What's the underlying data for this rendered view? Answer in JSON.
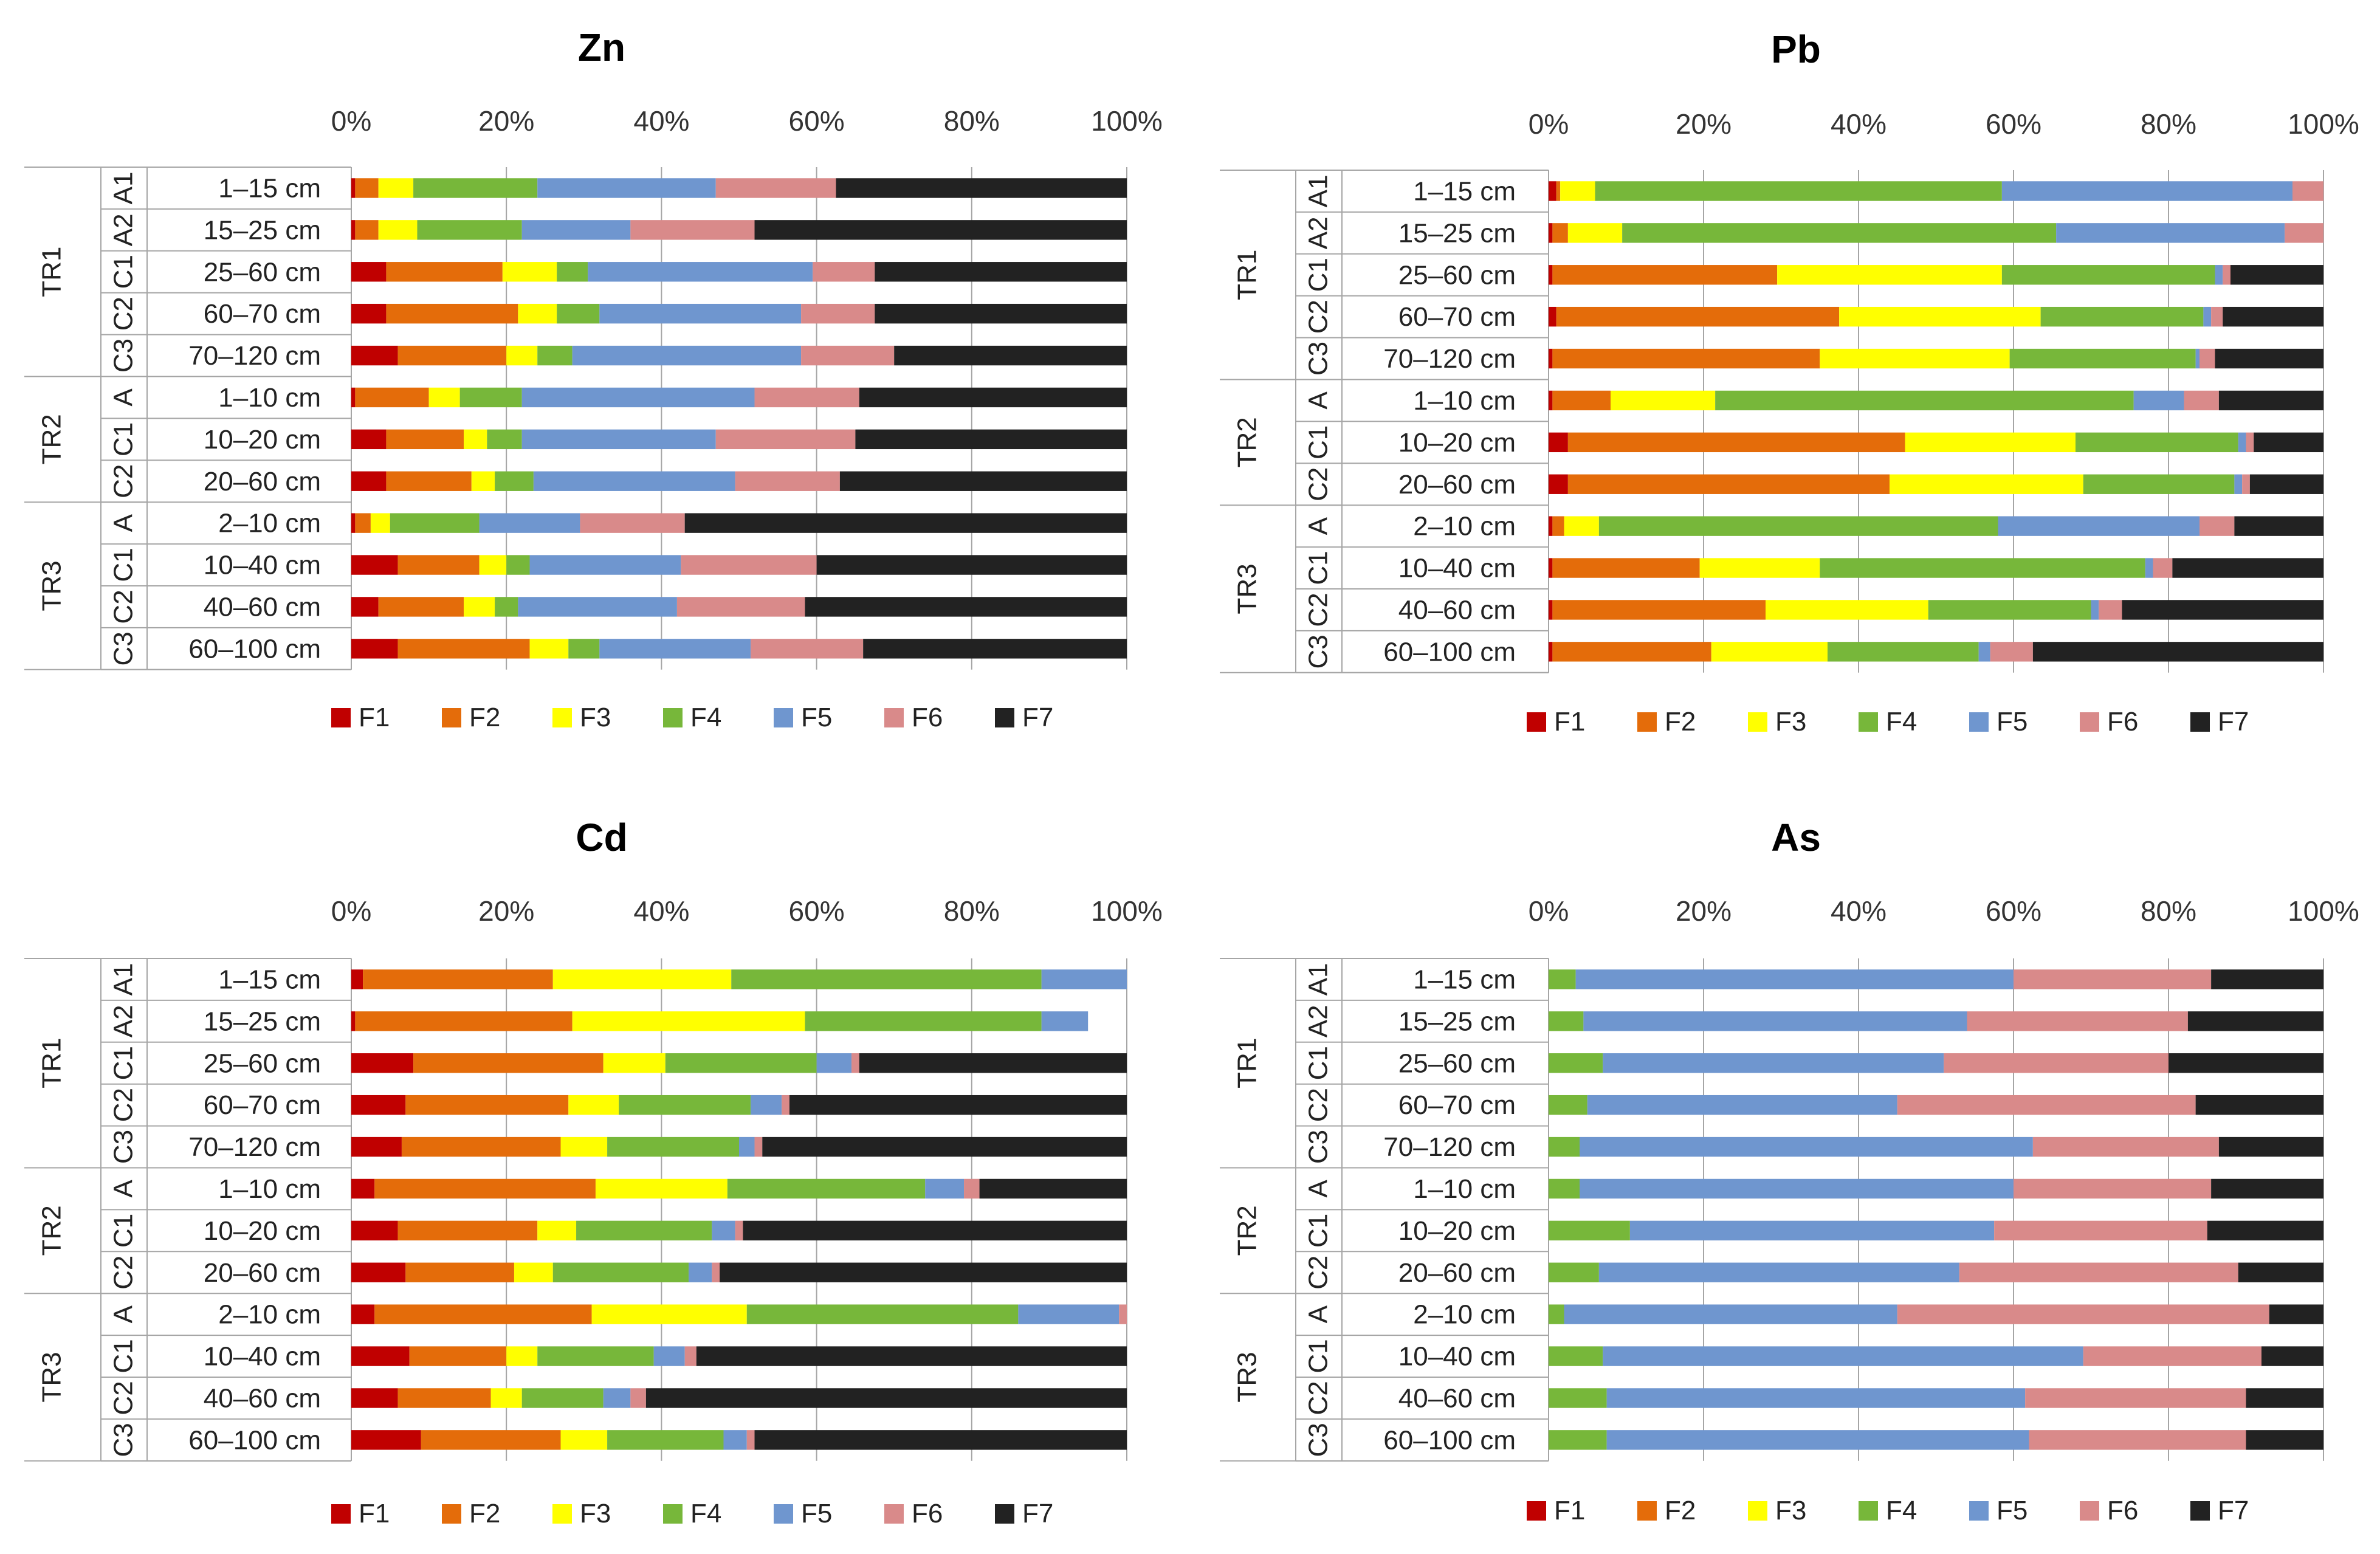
{
  "colors": {
    "F1": "#c00000",
    "F2": "#e46c0a",
    "F3": "#ffff00",
    "F4": "#77b73a",
    "F5": "#6f96cf",
    "F6": "#d98a8a",
    "F7": "#222222",
    "axis": "#a6a6a6",
    "grid": "#a6a6a6"
  },
  "x_tick_labels": [
    "0%",
    "20%",
    "40%",
    "60%",
    "80%",
    "100%"
  ],
  "legend": [
    "F1",
    "F2",
    "F3",
    "F4",
    "F5",
    "F6",
    "F7"
  ],
  "chart_data": [
    {
      "type": "bar",
      "stacked": "100%",
      "orientation": "horizontal",
      "title": "Zn",
      "xlim": [
        0,
        100
      ],
      "categories": [
        "1–15 cm",
        "15–25 cm",
        "25–60 cm",
        "60–70 cm",
        "70–120 cm",
        "1–10 cm",
        "10–20 cm",
        "20–60 cm",
        "2–10 cm",
        "10–40 cm",
        "40–60 cm",
        "60–100 cm"
      ],
      "horizons": [
        "A1",
        "A2",
        "C1",
        "C2",
        "C3",
        "A",
        "C1",
        "C2",
        "A",
        "C1",
        "C2",
        "C3"
      ],
      "groups": [
        {
          "name": "TR1",
          "rows": 5
        },
        {
          "name": "TR2",
          "rows": 3
        },
        {
          "name": "TR3",
          "rows": 4
        }
      ],
      "series": [
        {
          "name": "F1",
          "values": [
            0.5,
            0.5,
            4.5,
            4.5,
            6,
            0.5,
            4.5,
            4.5,
            0.5,
            6,
            3.5,
            6
          ]
        },
        {
          "name": "F2",
          "values": [
            3,
            3,
            15,
            17,
            14,
            9.5,
            10,
            11,
            2,
            10.5,
            11,
            17
          ]
        },
        {
          "name": "F3",
          "values": [
            4.5,
            5,
            7,
            5,
            4,
            4,
            3,
            3,
            2.5,
            3.5,
            4,
            5
          ]
        },
        {
          "name": "F4",
          "values": [
            16,
            13.5,
            4,
            5.5,
            4.5,
            8,
            4.5,
            5,
            11.5,
            3,
            3,
            4
          ]
        },
        {
          "name": "F5",
          "values": [
            23,
            14,
            29,
            26,
            29.5,
            30,
            25,
            26,
            13,
            19.5,
            20.5,
            19.5
          ]
        },
        {
          "name": "F6",
          "values": [
            15.5,
            16,
            8,
            9.5,
            12,
            13.5,
            18,
            13.5,
            13.5,
            17.5,
            16.5,
            14.5
          ]
        },
        {
          "name": "F7",
          "values": [
            37.5,
            48,
            32.5,
            32.5,
            30,
            34.5,
            35,
            37,
            57,
            40,
            41.5,
            34
          ]
        }
      ]
    },
    {
      "type": "bar",
      "stacked": "100%",
      "orientation": "horizontal",
      "title": "Pb",
      "xlim": [
        0,
        100
      ],
      "categories": [
        "1–15 cm",
        "15–25 cm",
        "25–60 cm",
        "60–70 cm",
        "70–120 cm",
        "1–10 cm",
        "10–20 cm",
        "20–60 cm",
        "2–10 cm",
        "10–40 cm",
        "40–60 cm",
        "60–100 cm"
      ],
      "horizons": [
        "A1",
        "A2",
        "C1",
        "C2",
        "C3",
        "A",
        "C1",
        "C2",
        "A",
        "C1",
        "C2",
        "C3"
      ],
      "groups": [
        {
          "name": "TR1",
          "rows": 5
        },
        {
          "name": "TR2",
          "rows": 3
        },
        {
          "name": "TR3",
          "rows": 4
        }
      ],
      "series": [
        {
          "name": "F1",
          "values": [
            1,
            0.5,
            0.5,
            1,
            0.5,
            0.5,
            2.5,
            2.5,
            0.5,
            0.5,
            0.5,
            0.5
          ]
        },
        {
          "name": "F2",
          "values": [
            0.5,
            2,
            29,
            36.5,
            34.5,
            7.5,
            43.5,
            41.5,
            1.5,
            19,
            27.5,
            20.5
          ]
        },
        {
          "name": "F3",
          "values": [
            4.5,
            7,
            29,
            26,
            24.5,
            13.5,
            22,
            25,
            4.5,
            15.5,
            21,
            15
          ]
        },
        {
          "name": "F4",
          "values": [
            52.5,
            56,
            27.5,
            21,
            24,
            54,
            21,
            19.5,
            51.5,
            42,
            21,
            19.5
          ]
        },
        {
          "name": "F5",
          "values": [
            37.5,
            29.5,
            1,
            1,
            0.5,
            6.5,
            1,
            1,
            26,
            1,
            1,
            1.5
          ]
        },
        {
          "name": "F6",
          "values": [
            4,
            5,
            1,
            1.5,
            2,
            4.5,
            1,
            1,
            4.5,
            2.5,
            3,
            5.5
          ]
        },
        {
          "name": "F7",
          "values": [
            0,
            0,
            12,
            13,
            14,
            13.5,
            9,
            9.5,
            11.5,
            19.5,
            26,
            37.5
          ]
        }
      ]
    },
    {
      "type": "bar",
      "stacked": "100%",
      "orientation": "horizontal",
      "title": "Cd",
      "xlim": [
        0,
        100
      ],
      "categories": [
        "1–15 cm",
        "15–25 cm",
        "25–60 cm",
        "60–70 cm",
        "70–120 cm",
        "1–10 cm",
        "10–20 cm",
        "20–60 cm",
        "2–10 cm",
        "10–40 cm",
        "40–60 cm",
        "60–100 cm"
      ],
      "horizons": [
        "A1",
        "A2",
        "C1",
        "C2",
        "C3",
        "A",
        "C1",
        "C2",
        "A",
        "C1",
        "C2",
        "C3"
      ],
      "groups": [
        {
          "name": "TR1",
          "rows": 5
        },
        {
          "name": "TR2",
          "rows": 3
        },
        {
          "name": "TR3",
          "rows": 4
        }
      ],
      "series": [
        {
          "name": "F1",
          "values": [
            1.5,
            0.5,
            8,
            7,
            6.5,
            3,
            6,
            7,
            3,
            7.5,
            6,
            9
          ]
        },
        {
          "name": "F2",
          "values": [
            24.5,
            28,
            24.5,
            21,
            20.5,
            28.5,
            18,
            14,
            28,
            12.5,
            12,
            18
          ]
        },
        {
          "name": "F3",
          "values": [
            23,
            30,
            8,
            6.5,
            6,
            17,
            5,
            5,
            20,
            4,
            4,
            6
          ]
        },
        {
          "name": "F4",
          "values": [
            40,
            30.5,
            19.5,
            17,
            17,
            25.5,
            17.5,
            17.5,
            35,
            15,
            10.5,
            15
          ]
        },
        {
          "name": "F5",
          "values": [
            11,
            6,
            4.5,
            4,
            2,
            5,
            3,
            3,
            13,
            4,
            3.5,
            3
          ]
        },
        {
          "name": "F6",
          "values": [
            0,
            0,
            1,
            1,
            1,
            2,
            1,
            1,
            1,
            1.5,
            2,
            1
          ]
        },
        {
          "name": "F7",
          "values": [
            0,
            0,
            34.5,
            43.5,
            47,
            19,
            49.5,
            52.5,
            0,
            55.5,
            62,
            48
          ]
        }
      ]
    },
    {
      "type": "bar",
      "stacked": "100%",
      "orientation": "horizontal",
      "title": "As",
      "xlim": [
        0,
        100
      ],
      "categories": [
        "1–15 cm",
        "15–25 cm",
        "25–60 cm",
        "60–70 cm",
        "70–120 cm",
        "1–10 cm",
        "10–20 cm",
        "20–60 cm",
        "2–10 cm",
        "10–40 cm",
        "40–60 cm",
        "60–100 cm"
      ],
      "horizons": [
        "A1",
        "A2",
        "C1",
        "C2",
        "C3",
        "A",
        "C1",
        "C2",
        "A",
        "C1",
        "C2",
        "C3"
      ],
      "groups": [
        {
          "name": "TR1",
          "rows": 5
        },
        {
          "name": "TR2",
          "rows": 3
        },
        {
          "name": "TR3",
          "rows": 4
        }
      ],
      "series": [
        {
          "name": "F1",
          "values": [
            0,
            0,
            0,
            0,
            0,
            0,
            0,
            0,
            0,
            0,
            0,
            0
          ]
        },
        {
          "name": "F2",
          "values": [
            0,
            0,
            0,
            0,
            0,
            0,
            0,
            0,
            0,
            0,
            0,
            0
          ]
        },
        {
          "name": "F3",
          "values": [
            0,
            0,
            0,
            0,
            0,
            0,
            0,
            0,
            0,
            0,
            0,
            0
          ]
        },
        {
          "name": "F4",
          "values": [
            3.5,
            4.5,
            7,
            5,
            4,
            4,
            10.5,
            6.5,
            2,
            7,
            7.5,
            7.5
          ]
        },
        {
          "name": "F5",
          "values": [
            56.5,
            49.5,
            44,
            40,
            58.5,
            56,
            47,
            46.5,
            43,
            62,
            54,
            54.5
          ]
        },
        {
          "name": "F6",
          "values": [
            25.5,
            28.5,
            29,
            38.5,
            24,
            25.5,
            27.5,
            36,
            48,
            23,
            28.5,
            28
          ]
        },
        {
          "name": "F7",
          "values": [
            14.5,
            17.5,
            20,
            16.5,
            13.5,
            14.5,
            15,
            11,
            7,
            8,
            10,
            10
          ]
        }
      ]
    }
  ]
}
